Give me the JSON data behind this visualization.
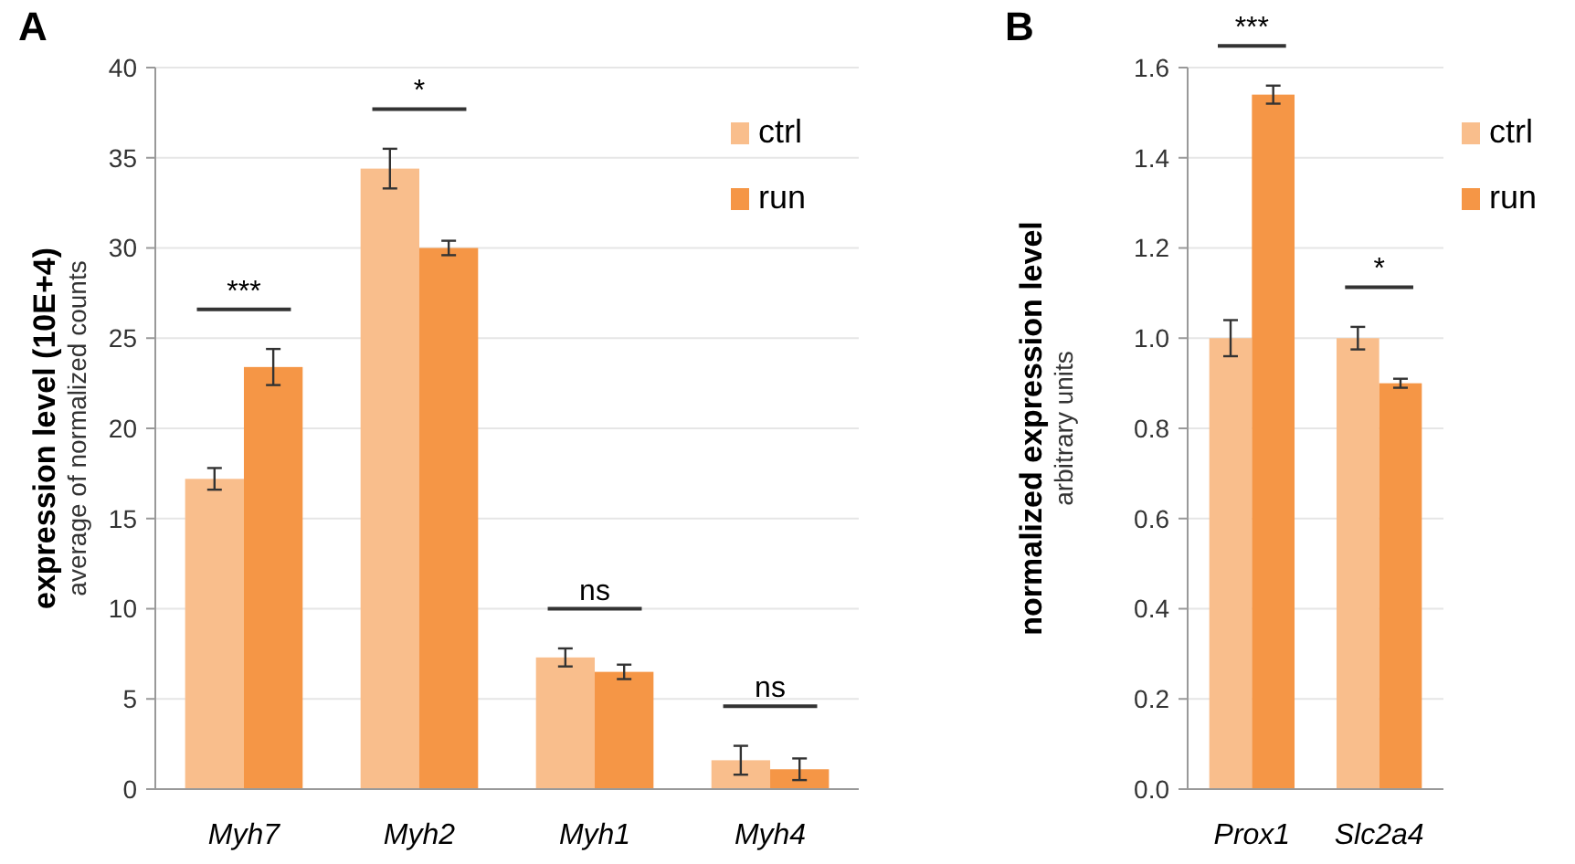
{
  "chart_data": [
    {
      "type": "bar",
      "title": "A",
      "ylabel": "expression level (10E+4)\naverage of normalized counts",
      "categories": [
        "Myh7",
        "Myh2",
        "Myh1",
        "Myh4"
      ],
      "series": [
        {
          "name": "ctrl",
          "color": "#f9be8c",
          "values": [
            17.2,
            34.4,
            7.3,
            1.6
          ],
          "errors": [
            0.6,
            1.1,
            0.5,
            0.8
          ]
        },
        {
          "name": "run",
          "color": "#f59646",
          "values": [
            23.4,
            30.0,
            6.5,
            1.1
          ],
          "errors": [
            1.0,
            0.4,
            0.4,
            0.6
          ]
        }
      ],
      "ylim": [
        0,
        40
      ],
      "yticks": [
        0,
        5,
        10,
        15,
        20,
        25,
        30,
        35,
        40
      ],
      "grid": "y",
      "legend": "top right",
      "annotations": [
        "***",
        "*",
        "ns",
        "ns"
      ]
    },
    {
      "type": "bar",
      "title": "B",
      "ylabel": "normalized expression level\narbitrary units",
      "categories": [
        "Prox1",
        "Slc2a4"
      ],
      "series": [
        {
          "name": "ctrl",
          "color": "#f9be8c",
          "values": [
            1.0,
            1.0
          ],
          "errors": [
            0.04,
            0.025
          ]
        },
        {
          "name": "run",
          "color": "#f59646",
          "values": [
            1.54,
            0.9
          ],
          "errors": [
            0.02,
            0.01
          ]
        }
      ],
      "ylim": [
        0,
        1.6
      ],
      "yticks": [
        {
          "value": 0,
          "label": "0.0"
        },
        0.2,
        0.4,
        0.6,
        0.8,
        {
          "value": 1,
          "label": "1.0"
        },
        1.2,
        1.4,
        1.6
      ],
      "grid": "y",
      "legend": "top right",
      "annotations": [
        "***",
        "*"
      ]
    }
  ]
}
